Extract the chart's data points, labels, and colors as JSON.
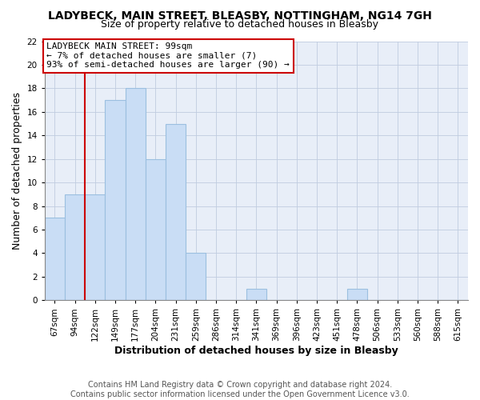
{
  "title": "LADYBECK, MAIN STREET, BLEASBY, NOTTINGHAM, NG14 7GH",
  "subtitle": "Size of property relative to detached houses in Bleasby",
  "xlabel": "Distribution of detached houses by size in Bleasby",
  "ylabel": "Number of detached properties",
  "bar_labels": [
    "67sqm",
    "94sqm",
    "122sqm",
    "149sqm",
    "177sqm",
    "204sqm",
    "231sqm",
    "259sqm",
    "286sqm",
    "314sqm",
    "341sqm",
    "369sqm",
    "396sqm",
    "423sqm",
    "451sqm",
    "478sqm",
    "506sqm",
    "533sqm",
    "560sqm",
    "588sqm",
    "615sqm"
  ],
  "bar_values": [
    7,
    9,
    9,
    17,
    18,
    12,
    15,
    4,
    0,
    0,
    1,
    0,
    0,
    0,
    0,
    1,
    0,
    0,
    0,
    0,
    0
  ],
  "bar_color": "#c9ddf5",
  "bar_edge_color": "#9bbfe0",
  "annotation_title": "LADYBECK MAIN STREET: 99sqm",
  "annotation_line1": "← 7% of detached houses are smaller (7)",
  "annotation_line2": "93% of semi-detached houses are larger (90) →",
  "annotation_box_color": "#ffffff",
  "annotation_box_edge": "#cc0000",
  "vline_color": "#cc0000",
  "vline_x": 1.5,
  "ylim": [
    0,
    22
  ],
  "yticks": [
    0,
    2,
    4,
    6,
    8,
    10,
    12,
    14,
    16,
    18,
    20,
    22
  ],
  "footer1": "Contains HM Land Registry data © Crown copyright and database right 2024.",
  "footer2": "Contains public sector information licensed under the Open Government Licence v3.0.",
  "bg_color": "#e8eef8",
  "title_fontsize": 10,
  "subtitle_fontsize": 9,
  "axis_label_fontsize": 9,
  "tick_fontsize": 7.5,
  "footer_fontsize": 7,
  "ann_fontsize": 8
}
